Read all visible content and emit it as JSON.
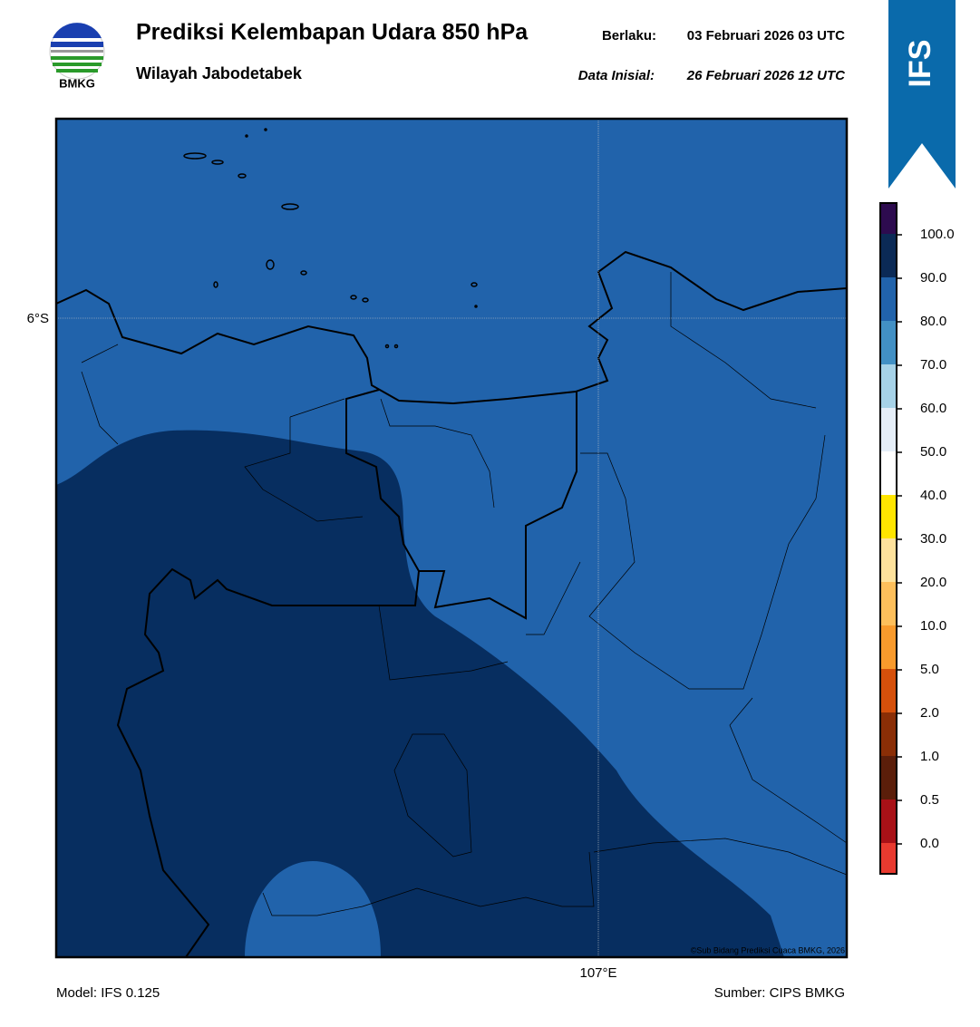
{
  "header": {
    "logo_text": "BMKG",
    "title": "Prediksi Kelembapan Udara 850 hPa",
    "subtitle": "Wilayah Jabodetabek",
    "valid_label": "Berlaku:",
    "valid_value": "03 Februari 2026 03 UTC",
    "init_label": "Data Inisial:",
    "init_value": "26 Februari 2026 12 UTC",
    "badge": "IFS"
  },
  "map": {
    "lat_label": "6°S",
    "lon_label": "107°E",
    "credit": "©Sub Bidang Prediksi Cuaca BMKG, 2026"
  },
  "colorbar": {
    "labels": [
      "100.0",
      "90.0",
      "80.0",
      "70.0",
      "60.0",
      "50.0",
      "40.0",
      "30.0",
      "20.0",
      "10.0",
      "5.0",
      "2.0",
      "1.0",
      "0.5",
      "0.0"
    ],
    "colors": [
      "#2d0b4f",
      "#0b2a56",
      "#2163ab",
      "#4290c4",
      "#a6d2e7",
      "#e5eef8",
      "#ffffff",
      "#ffe500",
      "#fee29c",
      "#fdbf5b",
      "#f89a2c",
      "#d5500b",
      "#8a2e06",
      "#5b1e0a",
      "#a81117",
      "#e83a2f"
    ]
  },
  "footer": {
    "model": "Model: IFS 0.125",
    "source": "Sumber: CIPS BMKG"
  }
}
